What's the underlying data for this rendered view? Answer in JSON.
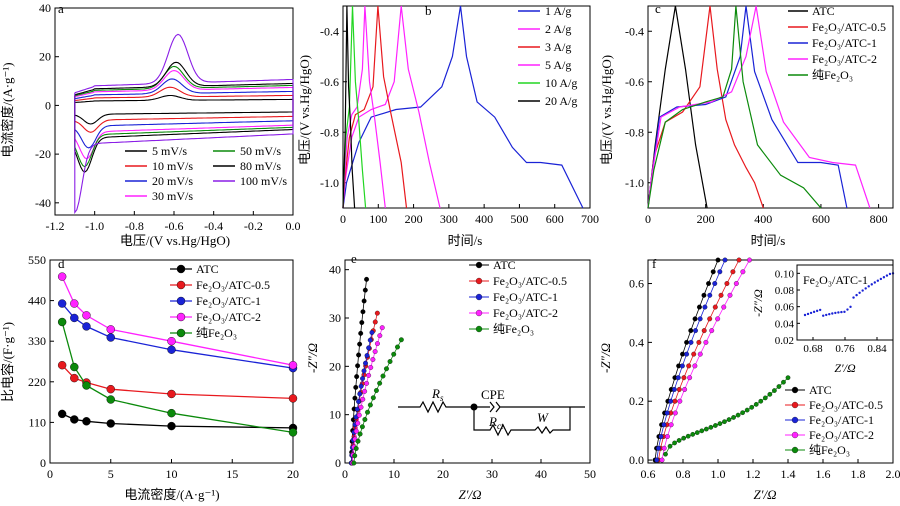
{
  "colors": {
    "black": "#000000",
    "red": "#e8191e",
    "blue": "#1a23d6",
    "magenta": "#ff22ff",
    "green": "#0b8a0b",
    "lime": "#22d622",
    "violet": "#8a1ee6"
  },
  "panels": [
    {
      "id": "a",
      "label": "a",
      "ylabel": "电流密度/(A·g⁻¹)",
      "xlabel": "电压/(V vs.Hg/HgO)",
      "xticks": [
        "-1.2",
        "-1.0",
        "-0.8",
        "-0.6",
        "-0.4",
        "-0.2",
        "0.0"
      ],
      "yticks": [
        "-40",
        "-20",
        "0",
        "20",
        "40"
      ]
    },
    {
      "id": "b",
      "label": "b",
      "ylabel": "电压/(V vs.Hg/HgO)",
      "xlabel": "时间/s",
      "xticks": [
        "0",
        "100",
        "200",
        "300",
        "400",
        "500",
        "600",
        "700"
      ],
      "yticks": [
        "-1.0",
        "-0.8",
        "-0.6",
        "-0.4"
      ]
    },
    {
      "id": "c",
      "label": "c",
      "ylabel": "电压/(V vs.Hg/HgO)",
      "xlabel": "时间/s",
      "xticks": [
        "0",
        "200",
        "400",
        "600",
        "800"
      ],
      "yticks": [
        "-1.0",
        "-0.8",
        "-0.6",
        "-0.4"
      ]
    },
    {
      "id": "d",
      "label": "d",
      "ylabel": "比电容/(F·g⁻¹)",
      "xlabel": "电流密度/(A·g⁻¹)",
      "xticks": [
        "0",
        "5",
        "10",
        "15",
        "20"
      ],
      "yticks": [
        "0",
        "110",
        "220",
        "330",
        "440",
        "550"
      ]
    },
    {
      "id": "e",
      "label": "e",
      "ylabel": "-Z″/Ω",
      "xlabel": "Z′/Ω",
      "xticks": [
        "0",
        "10",
        "20",
        "30",
        "40",
        "50"
      ],
      "yticks": [
        "0",
        "10",
        "20",
        "30",
        "40"
      ]
    },
    {
      "id": "f",
      "label": "f",
      "ylabel": "-Z″/Ω",
      "xlabel": "Z′/Ω",
      "xticks": [
        "0.6",
        "0.8",
        "1.0",
        "1.2",
        "1.4",
        "1.6",
        "1.8",
        "2.0"
      ],
      "yticks": [
        "0.0",
        "0.2",
        "0.4",
        "0.6"
      ]
    }
  ],
  "circuit": {
    "rs": "R",
    "rs_sub": "s",
    "cpe": "CPE",
    "rct": "R",
    "rct_sub": "ct",
    "w": "W"
  },
  "inset": {
    "label": "Fe₂O₃/ATC-1",
    "xticks": [
      "0.68",
      "0.76",
      "0.84"
    ],
    "yticks": [
      "0.02",
      "0.04",
      "0.06",
      "0.08",
      "0.10"
    ],
    "xlabel": "Z′/Ω",
    "ylabel": "-Z″/Ω"
  },
  "chart_data": [
    {
      "type": "line",
      "panel": "a",
      "title": "",
      "xlabel": "电压/(V vs.Hg/HgO)",
      "ylabel": "电流密度/(A·g⁻¹)",
      "xlim": [
        -1.2,
        0.0
      ],
      "ylim": [
        -45,
        40
      ],
      "series": [
        {
          "name": "5 mV/s",
          "color": "black",
          "peak_anodic": [
            -0.62,
            5
          ],
          "peak_cathodic": [
            -1.02,
            -7
          ],
          "amp": 3
        },
        {
          "name": "10 mV/s",
          "color": "red",
          "peak_anodic": [
            -0.62,
            9
          ],
          "peak_cathodic": [
            -1.02,
            -10
          ],
          "amp": 5
        },
        {
          "name": "20 mV/s",
          "color": "blue",
          "peak_anodic": [
            -0.61,
            13
          ],
          "peak_cathodic": [
            -1.03,
            -16
          ],
          "amp": 7
        },
        {
          "name": "30 mV/s",
          "color": "magenta",
          "peak_anodic": [
            -0.6,
            17
          ],
          "peak_cathodic": [
            -1.04,
            -20
          ],
          "amp": 9
        },
        {
          "name": "50 mV/s",
          "color": "green",
          "peak_anodic": [
            -0.6,
            19
          ],
          "peak_cathodic": [
            -1.05,
            -23
          ],
          "amp": 10
        },
        {
          "name": "80 mV/s",
          "color": "black",
          "peak_anodic": [
            -0.59,
            21
          ],
          "peak_cathodic": [
            -1.05,
            -25
          ],
          "amp": 11
        },
        {
          "name": "100 mV/s",
          "color": "violet",
          "peak_anodic": [
            -0.58,
            33
          ],
          "peak_cathodic": [
            -1.1,
            -41
          ],
          "amp": 13
        }
      ]
    },
    {
      "type": "line",
      "panel": "b",
      "title": "",
      "xlabel": "时间/s",
      "ylabel": "电压/(V vs.Hg/HgO)",
      "xlim": [
        0,
        700
      ],
      "ylim": [
        -1.1,
        -0.3
      ],
      "series": [
        {
          "name": "1 A/g",
          "color": "blue",
          "x": [
            0,
            10,
            45,
            80,
            150,
            220,
            280,
            310,
            333,
            350,
            380,
            430,
            480,
            520,
            560,
            620,
            680
          ],
          "y": [
            -1.1,
            -1.0,
            -0.84,
            -0.74,
            -0.71,
            -0.7,
            -0.62,
            -0.5,
            -0.3,
            -0.5,
            -0.68,
            -0.74,
            -0.86,
            -0.92,
            -0.92,
            -0.93,
            -1.1
          ]
        },
        {
          "name": "2 A/g",
          "color": "magenta",
          "x": [
            0,
            5,
            25,
            45,
            80,
            120,
            145,
            165,
            185,
            215,
            245,
            275
          ],
          "y": [
            -1.1,
            -1.0,
            -0.82,
            -0.74,
            -0.71,
            -0.69,
            -0.6,
            -0.3,
            -0.55,
            -0.72,
            -0.92,
            -1.1
          ]
        },
        {
          "name": "3 A/g",
          "color": "red",
          "x": [
            0,
            4,
            18,
            35,
            60,
            85,
            99,
            115,
            135,
            165,
            180
          ],
          "y": [
            -1.1,
            -1.0,
            -0.82,
            -0.73,
            -0.71,
            -0.62,
            -0.3,
            -0.58,
            -0.72,
            -0.92,
            -1.1
          ]
        },
        {
          "name": "5 A/g",
          "color": "magenta",
          "x": [
            0,
            3,
            12,
            25,
            40,
            55,
            62,
            75,
            90,
            105,
            120
          ],
          "y": [
            -1.1,
            -1.0,
            -0.82,
            -0.73,
            -0.7,
            -0.55,
            -0.3,
            -0.6,
            -0.75,
            -0.92,
            -1.1
          ]
        },
        {
          "name": "10 A/g",
          "color": "lime",
          "x": [
            0,
            2,
            8,
            18,
            27,
            35,
            45,
            55,
            64
          ],
          "y": [
            -1.1,
            -1.0,
            -0.82,
            -0.7,
            -0.3,
            -0.6,
            -0.76,
            -0.95,
            -1.1
          ]
        },
        {
          "name": "20 A/g",
          "color": "black",
          "x": [
            0,
            2,
            6,
            11,
            16,
            21,
            26,
            33
          ],
          "y": [
            -1.1,
            -1.0,
            -0.82,
            -0.3,
            -0.62,
            -0.76,
            -0.95,
            -1.1
          ]
        }
      ]
    },
    {
      "type": "line",
      "panel": "c",
      "title": "",
      "xlabel": "时间/s",
      "ylabel": "电压/(V vs.Hg/HgO)",
      "xlim": [
        0,
        850
      ],
      "ylim": [
        -1.1,
        -0.3
      ],
      "series": [
        {
          "name": "ATC",
          "color": "black",
          "x": [
            0,
            25,
            60,
            95,
            130,
            165,
            205
          ],
          "y": [
            -1.1,
            -0.85,
            -0.55,
            -0.3,
            -0.55,
            -0.85,
            -1.1
          ]
        },
        {
          "name": "Fe₂O₃/ATC-0.5",
          "color": "red",
          "x": [
            0,
            20,
            60,
            120,
            180,
            215,
            240,
            270,
            300,
            340,
            370,
            400
          ],
          "y": [
            -1.1,
            -0.9,
            -0.76,
            -0.72,
            -0.62,
            -0.3,
            -0.55,
            -0.75,
            -0.85,
            -0.94,
            -1.0,
            -1.1
          ]
        },
        {
          "name": "Fe₂O₃/ATC-1",
          "color": "blue",
          "x": [
            0,
            10,
            40,
            100,
            200,
            270,
            320,
            340,
            370,
            430,
            520,
            600,
            660,
            690
          ],
          "y": [
            -1.1,
            -1.0,
            -0.74,
            -0.7,
            -0.69,
            -0.66,
            -0.5,
            -0.3,
            -0.56,
            -0.75,
            -0.92,
            -0.92,
            -0.93,
            -1.1
          ]
        },
        {
          "name": "Fe₂O₃/ATC-2",
          "color": "magenta",
          "x": [
            0,
            10,
            45,
            110,
            220,
            290,
            340,
            375,
            410,
            470,
            560,
            640,
            720,
            770
          ],
          "y": [
            -1.1,
            -1.0,
            -0.74,
            -0.7,
            -0.68,
            -0.64,
            -0.5,
            -0.3,
            -0.56,
            -0.76,
            -0.9,
            -0.92,
            -0.93,
            -1.1
          ]
        },
        {
          "name": "纯Fe₂O₃",
          "color": "green",
          "x": [
            0,
            20,
            60,
            120,
            200,
            260,
            290,
            305,
            330,
            380,
            460,
            540,
            600
          ],
          "y": [
            -1.1,
            -0.95,
            -0.76,
            -0.71,
            -0.68,
            -0.66,
            -0.55,
            -0.3,
            -0.6,
            -0.85,
            -0.97,
            -1.02,
            -1.1
          ]
        }
      ]
    },
    {
      "type": "line",
      "panel": "d",
      "title": "",
      "xlabel": "电流密度/(A·g⁻¹)",
      "ylabel": "比电容/(F·g⁻¹)",
      "xlim": [
        0,
        20
      ],
      "ylim": [
        0,
        550
      ],
      "x": [
        1,
        2,
        3,
        5,
        10,
        20
      ],
      "series": [
        {
          "name": "ATC",
          "color": "black",
          "values": [
            133,
            118,
            113,
            107,
            100,
            95
          ]
        },
        {
          "name": "Fe₂O₃/ATC-0.5",
          "color": "red",
          "values": [
            265,
            230,
            218,
            200,
            187,
            175
          ]
        },
        {
          "name": "Fe₂O₃/ATC-1",
          "color": "blue",
          "values": [
            432,
            393,
            370,
            340,
            307,
            257
          ]
        },
        {
          "name": "Fe₂O₃/ATC-2",
          "color": "magenta",
          "values": [
            505,
            432,
            400,
            362,
            330,
            265
          ]
        },
        {
          "name": "纯Fe₂O₃",
          "color": "green",
          "values": [
            382,
            260,
            210,
            172,
            135,
            83
          ]
        }
      ]
    },
    {
      "type": "scatter",
      "panel": "e",
      "title": "",
      "xlabel": "Z′/Ω",
      "ylabel": "-Z″/Ω",
      "xlim": [
        0,
        50
      ],
      "ylim": [
        0,
        42
      ],
      "series": [
        {
          "name": "ATC",
          "color": "black",
          "x0": 1.3,
          "x1": 4.4,
          "y1": 38
        },
        {
          "name": "Fe₂O₃/ATC-0.5",
          "color": "red",
          "x0": 1.4,
          "x1": 6.6,
          "y1": 31
        },
        {
          "name": "Fe₂O₃/ATC-1",
          "color": "blue",
          "x0": 1.3,
          "x1": 5.5,
          "y1": 27
        },
        {
          "name": "Fe₂O₃/ATC-2",
          "color": "magenta",
          "x0": 1.5,
          "x1": 7.6,
          "y1": 28
        },
        {
          "name": "纯Fe₂O₃",
          "color": "green",
          "x0": 1.8,
          "x1": 11.5,
          "y1": 25.5
        }
      ]
    },
    {
      "type": "scatter",
      "panel": "f",
      "title": "",
      "xlabel": "Z′/Ω",
      "ylabel": "-Z″/Ω",
      "xlim": [
        0.6,
        2.0
      ],
      "ylim": [
        -0.01,
        0.68
      ],
      "series": [
        {
          "name": "ATC",
          "color": "black",
          "x0": 0.64,
          "x1": 1.0,
          "y1": 0.68
        },
        {
          "name": "Fe₂O₃/ATC-0.5",
          "color": "red",
          "x0": 0.66,
          "x1": 1.12,
          "y1": 0.68
        },
        {
          "name": "Fe₂O₃/ATC-1",
          "color": "blue",
          "x0": 0.65,
          "x1": 1.04,
          "y1": 0.68
        },
        {
          "name": "Fe₂O₃/ATC-2",
          "color": "magenta",
          "x0": 0.68,
          "x1": 1.18,
          "y1": 0.68
        },
        {
          "name": "纯Fe₂O₃",
          "color": "green",
          "x0": 0.7,
          "x1": 1.4,
          "y1": 0.3
        }
      ]
    }
  ]
}
